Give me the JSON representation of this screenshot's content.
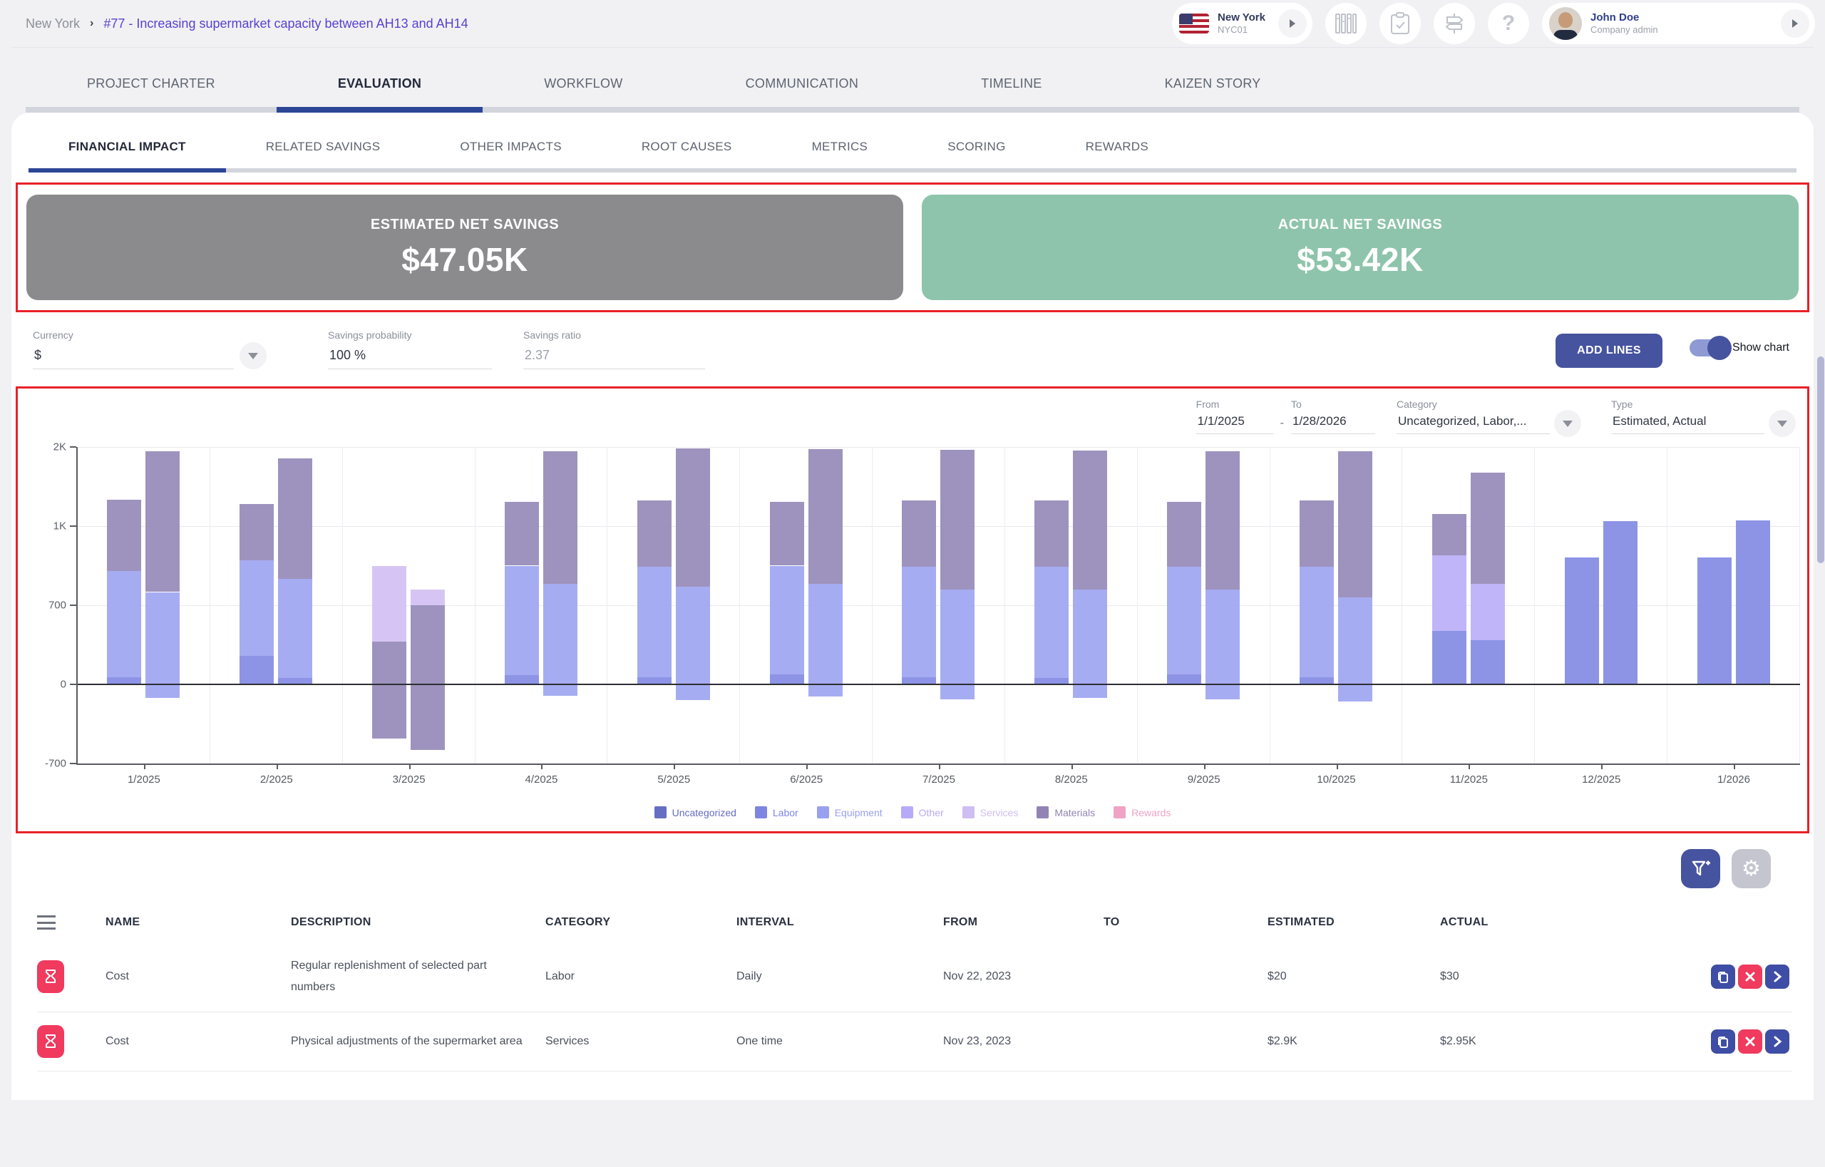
{
  "breadcrumb": {
    "root": "New York",
    "separator": "›",
    "current": "#77 - Increasing supermarket capacity between AH13 and AH14"
  },
  "header": {
    "site": {
      "name": "New York",
      "code": "NYC01"
    },
    "icons": [
      "kanban-icon",
      "clipboard-check-icon",
      "signpost-icon",
      "help-icon"
    ],
    "user": {
      "name": "John Doe",
      "role": "Company admin"
    }
  },
  "main_tabs": {
    "items": [
      {
        "label": "PROJECT CHARTER",
        "active": false
      },
      {
        "label": "EVALUATION",
        "active": true
      },
      {
        "label": "WORKFLOW",
        "active": false
      },
      {
        "label": "COMMUNICATION",
        "active": false
      },
      {
        "label": "TIMELINE",
        "active": false
      },
      {
        "label": "KAIZEN STORY",
        "active": false
      }
    ]
  },
  "sub_tabs": {
    "items": [
      {
        "label": "FINANCIAL IMPACT",
        "active": true
      },
      {
        "label": "RELATED SAVINGS",
        "active": false
      },
      {
        "label": "OTHER IMPACTS",
        "active": false
      },
      {
        "label": "ROOT CAUSES",
        "active": false
      },
      {
        "label": "METRICS",
        "active": false
      },
      {
        "label": "SCORING",
        "active": false
      },
      {
        "label": "REWARDS",
        "active": false
      }
    ]
  },
  "summary_cards": [
    {
      "label": "ESTIMATED NET SAVINGS",
      "value": "$47.05K",
      "bg": "#8b8b8d"
    },
    {
      "label": "ACTUAL NET SAVINGS",
      "value": "$53.42K",
      "bg": "#8ec4ab"
    }
  ],
  "controls": {
    "currency": {
      "label": "Currency",
      "value": "$"
    },
    "savings_probability": {
      "label": "Savings probability",
      "value": "100 %"
    },
    "savings_ratio": {
      "label": "Savings ratio",
      "value": "2.37"
    },
    "add_lines_label": "ADD LINES",
    "show_chart_label": "Show chart",
    "show_chart_on": true
  },
  "chart_filters": {
    "from": {
      "label": "From",
      "value": "1/1/2025"
    },
    "range_separator": "-",
    "to": {
      "label": "To",
      "value": "1/28/2026"
    },
    "category": {
      "label": "Category",
      "value": "Uncategorized, Labor,..."
    },
    "type": {
      "label": "Type",
      "value": "Estimated, Actual"
    }
  },
  "chart_data": {
    "type": "bar",
    "stacked": true,
    "grid": true,
    "series_names": [
      "Estimated",
      "Actual"
    ],
    "y_ticks": [
      [
        "2K",
        2000
      ],
      [
        "1K",
        1000
      ],
      [
        "700",
        700
      ],
      [
        "0",
        0
      ],
      [
        "-700",
        -700
      ]
    ],
    "scale_stops": {
      "values": [
        -700,
        0,
        700,
        1000,
        2000
      ],
      "fractions": [
        0,
        0.25,
        0.5,
        0.75,
        1
      ]
    },
    "legend": [
      {
        "label": "Uncategorized",
        "color": "#666dc4"
      },
      {
        "label": "Labor",
        "color": "#7d85e3"
      },
      {
        "label": "Equipment",
        "color": "#9aa0f0"
      },
      {
        "label": "Other",
        "color": "#b7abf7"
      },
      {
        "label": "Services",
        "color": "#d0bdf2"
      },
      {
        "label": "Materials",
        "color": "#9184b5"
      },
      {
        "label": "Rewards",
        "color": "#f0a3c4"
      }
    ],
    "groups": [
      {
        "month": "1/2025",
        "estimated": [
          [
            "Labor",
            0,
            60
          ],
          [
            "Equipment",
            60,
            830
          ],
          [
            "Materials",
            830,
            1330
          ]
        ],
        "actual": [
          [
            "Equipment",
            -120,
            750
          ],
          [
            "Materials",
            750,
            1950
          ]
        ]
      },
      {
        "month": "2/2025",
        "estimated": [
          [
            "Labor",
            0,
            250
          ],
          [
            "Equipment",
            250,
            870
          ],
          [
            "Materials",
            870,
            1280
          ]
        ],
        "actual": [
          [
            "Labor",
            0,
            55
          ],
          [
            "Equipment",
            55,
            800
          ],
          [
            "Materials",
            800,
            1860
          ]
        ]
      },
      {
        "month": "3/2025",
        "estimated": [
          [
            "Materials",
            -480,
            380
          ],
          [
            "Services",
            380,
            850
          ]
        ],
        "actual": [
          [
            "Materials",
            -580,
            700
          ],
          [
            "Services",
            700,
            760
          ]
        ]
      },
      {
        "month": "4/2025",
        "estimated": [
          [
            "Labor",
            0,
            80
          ],
          [
            "Equipment",
            80,
            850
          ],
          [
            "Materials",
            850,
            1310
          ]
        ],
        "actual": [
          [
            "Equipment",
            -100,
            780
          ],
          [
            "Materials",
            780,
            1950
          ]
        ]
      },
      {
        "month": "5/2025",
        "estimated": [
          [
            "Labor",
            0,
            60
          ],
          [
            "Equipment",
            60,
            845
          ],
          [
            "Materials",
            845,
            1320
          ]
        ],
        "actual": [
          [
            "Equipment",
            -140,
            770
          ],
          [
            "Materials",
            770,
            1985
          ]
        ]
      },
      {
        "month": "6/2025",
        "estimated": [
          [
            "Labor",
            0,
            90
          ],
          [
            "Equipment",
            90,
            850
          ],
          [
            "Materials",
            850,
            1310
          ]
        ],
        "actual": [
          [
            "Equipment",
            -110,
            780
          ],
          [
            "Materials",
            780,
            1970
          ]
        ]
      },
      {
        "month": "7/2025",
        "estimated": [
          [
            "Labor",
            0,
            60
          ],
          [
            "Equipment",
            60,
            845
          ],
          [
            "Materials",
            845,
            1320
          ]
        ],
        "actual": [
          [
            "Equipment",
            -130,
            760
          ],
          [
            "Materials",
            760,
            1960
          ]
        ]
      },
      {
        "month": "8/2025",
        "estimated": [
          [
            "Labor",
            0,
            55
          ],
          [
            "Equipment",
            55,
            845
          ],
          [
            "Materials",
            845,
            1320
          ]
        ],
        "actual": [
          [
            "Equipment",
            -120,
            760
          ],
          [
            "Materials",
            760,
            1955
          ]
        ]
      },
      {
        "month": "9/2025",
        "estimated": [
          [
            "Labor",
            0,
            90
          ],
          [
            "Equipment",
            90,
            845
          ],
          [
            "Materials",
            845,
            1310
          ]
        ],
        "actual": [
          [
            "Equipment",
            -130,
            760
          ],
          [
            "Materials",
            760,
            1950
          ]
        ]
      },
      {
        "month": "10/2025",
        "estimated": [
          [
            "Labor",
            0,
            60
          ],
          [
            "Equipment",
            60,
            845
          ],
          [
            "Materials",
            845,
            1320
          ]
        ],
        "actual": [
          [
            "Equipment",
            -150,
            730
          ],
          [
            "Materials",
            730,
            1950
          ]
        ]
      },
      {
        "month": "11/2025",
        "estimated": [
          [
            "Labor",
            0,
            470
          ],
          [
            "Other",
            470,
            890
          ],
          [
            "Materials",
            890,
            1150
          ]
        ],
        "actual": [
          [
            "Labor",
            0,
            390
          ],
          [
            "Other",
            390,
            780
          ],
          [
            "Materials",
            780,
            1680
          ]
        ]
      },
      {
        "month": "12/2025",
        "estimated": [
          [
            "Labor",
            0,
            880
          ]
        ],
        "actual": [
          [
            "Labor",
            0,
            1060
          ]
        ]
      },
      {
        "month": "1/2026",
        "estimated": [
          [
            "Labor",
            0,
            880
          ]
        ],
        "actual": [
          [
            "Labor",
            0,
            1070
          ]
        ]
      }
    ]
  },
  "table": {
    "columns": [
      "NAME",
      "DESCRIPTION",
      "CATEGORY",
      "INTERVAL",
      "FROM",
      "TO",
      "ESTIMATED",
      "ACTUAL"
    ],
    "row_actions": [
      "copy-icon",
      "delete-icon",
      "chevron-right-icon"
    ],
    "rows": [
      {
        "name": "Cost",
        "description": "Regular replenishment of selected part numbers",
        "category": "Labor",
        "interval": "Daily",
        "from": "Nov 22, 2023",
        "to": "",
        "estimated": "$20",
        "actual": "$30"
      },
      {
        "name": "Cost",
        "description": "Physical adjustments of the supermarket area",
        "category": "Services",
        "interval": "One time",
        "from": "Nov 23, 2023",
        "to": "",
        "estimated": "$2.9K",
        "actual": "$2.95K"
      }
    ]
  },
  "annotations": {
    "highlight_color": "#e82127"
  }
}
